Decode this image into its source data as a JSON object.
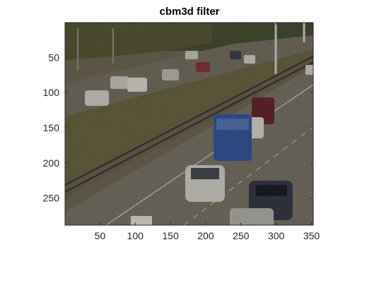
{
  "figure": {
    "title": "cbm3d filter"
  },
  "axes": {
    "x_ticks": [
      "50",
      "100",
      "150",
      "200",
      "250",
      "300",
      "350"
    ],
    "y_ticks": [
      "50",
      "100",
      "150",
      "200",
      "250"
    ],
    "x_tick_values": [
      50,
      100,
      150,
      200,
      250,
      300,
      350
    ],
    "y_tick_values": [
      50,
      100,
      150,
      200,
      250
    ],
    "x_range": [
      0.5,
      352.5
    ],
    "y_range": [
      0.5,
      288.5
    ]
  },
  "image": {
    "description_icon": "noisy-highway-image",
    "colors": {
      "road": "#7b7468",
      "vegetation": "#6f6a45",
      "trees": "#3f4a2e",
      "van": "#3a5aa3",
      "car_white": "#d9d9d4",
      "car_dark": "#3b3f4a",
      "car_red": "#7a2a35"
    }
  }
}
